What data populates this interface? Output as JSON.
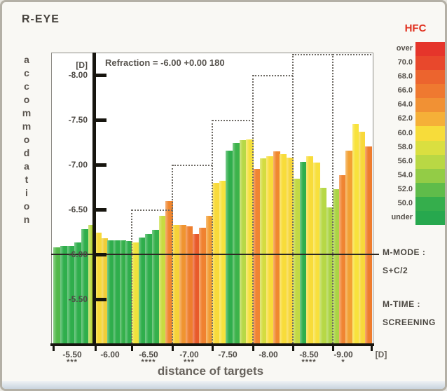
{
  "window": {
    "title": "R-EYE"
  },
  "side_panel": {
    "m_mode_label": "M-MODE :",
    "m_mode_value": "S+C/2",
    "m_time_label": "M-TIME :",
    "m_time_value": "SCREENING"
  },
  "legend": {
    "title": "HFC",
    "bands": [
      {
        "label": "over",
        "color": "#e5352b"
      },
      {
        "label": "70.0",
        "color": "#e8482c"
      },
      {
        "label": "68.0",
        "color": "#ec642e"
      },
      {
        "label": "66.0",
        "color": "#ef7930"
      },
      {
        "label": "64.0",
        "color": "#f19134"
      },
      {
        "label": "62.0",
        "color": "#f5b038"
      },
      {
        "label": "60.0",
        "color": "#f7dc3a"
      },
      {
        "label": "58.0",
        "color": "#dadf40"
      },
      {
        "label": "56.0",
        "color": "#b9d844"
      },
      {
        "label": "54.0",
        "color": "#93cc46"
      },
      {
        "label": "52.0",
        "color": "#5fbc4a"
      },
      {
        "label": "50.0",
        "color": "#35ae4c"
      },
      {
        "label": "under",
        "color": "#27a84e"
      }
    ]
  },
  "chart_data": {
    "type": "bar",
    "title": "R-EYE",
    "annotation": "Refraction = -6.00 +0.00 180",
    "xlabel": "distance of targets",
    "ylabel": "accommodation",
    "x_unit": "[D]",
    "y_unit": "[D]",
    "ylim": [
      -5.0,
      -8.25
    ],
    "refraction_value": -6.0,
    "grid": "off",
    "legend_position": "right",
    "y_ticks": [
      {
        "label": "-8.00",
        "value": -8.0
      },
      {
        "label": "-7.50",
        "value": -7.5
      },
      {
        "label": "-7.00",
        "value": -7.0
      },
      {
        "label": "-6.50",
        "value": -6.5
      },
      {
        "label": "-6.00",
        "value": -6.0
      },
      {
        "label": "-5.50",
        "value": -5.5
      }
    ],
    "stimulus_series": {
      "name": "target staircase",
      "style": "dotted-step",
      "values": [
        -5.5,
        -6.0,
        -6.5,
        -7.0,
        -7.5,
        -8.0,
        -8.5,
        -9.0
      ]
    },
    "groups": [
      {
        "target_label": "-5.50",
        "target_value": -5.5,
        "significance": "***",
        "bars": [
          {
            "value": -6.08,
            "color": "#52b94a"
          },
          {
            "value": -6.09,
            "color": "#2fae4c"
          },
          {
            "value": -6.09,
            "color": "#2fae4c"
          },
          {
            "value": -6.13,
            "color": "#2fae4c"
          },
          {
            "value": -6.28,
            "color": "#2fae4c"
          },
          {
            "value": -6.33,
            "color": "#b7d83e"
          }
        ]
      },
      {
        "target_label": "-6.00",
        "target_value": -6.0,
        "significance": "",
        "bars": [
          {
            "value": -6.24,
            "color": "#f7d93a"
          },
          {
            "value": -6.18,
            "color": "#f0cd38"
          },
          {
            "value": -6.16,
            "color": "#2fae4c"
          },
          {
            "value": -6.16,
            "color": "#2fae4c"
          },
          {
            "value": -6.16,
            "color": "#35b04b"
          },
          {
            "value": -6.15,
            "color": "#2fae4c"
          }
        ]
      },
      {
        "target_label": "-6.50",
        "target_value": -6.5,
        "significance": "****",
        "bars": [
          {
            "value": -6.13,
            "color": "#eee23c"
          },
          {
            "value": -6.19,
            "color": "#2fae4c"
          },
          {
            "value": -6.23,
            "color": "#2fae4c"
          },
          {
            "value": -6.27,
            "color": "#35b04b"
          },
          {
            "value": -6.43,
            "color": "#c8dc40"
          },
          {
            "value": -6.59,
            "color": "#f0862e"
          }
        ]
      },
      {
        "target_label": "-7.00",
        "target_value": -7.0,
        "significance": "***",
        "bars": [
          {
            "value": -6.33,
            "color": "#f6d238"
          },
          {
            "value": -6.33,
            "color": "#f09430"
          },
          {
            "value": -6.31,
            "color": "#ee7e2e"
          },
          {
            "value": -6.23,
            "color": "#e85a2a"
          },
          {
            "value": -6.3,
            "color": "#f08230"
          },
          {
            "value": -6.43,
            "color": "#f29c32"
          }
        ]
      },
      {
        "target_label": "-7.50",
        "target_value": -7.5,
        "significance": "",
        "bars": [
          {
            "value": -6.8,
            "color": "#f8da3a"
          },
          {
            "value": -6.82,
            "color": "#f8e23c"
          },
          {
            "value": -7.16,
            "color": "#2fae4c"
          },
          {
            "value": -7.24,
            "color": "#3cb34b"
          },
          {
            "value": -7.27,
            "color": "#b7d846"
          },
          {
            "value": -7.28,
            "color": "#f4e03c"
          }
        ]
      },
      {
        "target_label": "-8.00",
        "target_value": -8.0,
        "significance": "",
        "bars": [
          {
            "value": -6.95,
            "color": "#f08432"
          },
          {
            "value": -7.07,
            "color": "#d4dc40"
          },
          {
            "value": -7.09,
            "color": "#f8dc3a"
          },
          {
            "value": -7.15,
            "color": "#f0882e"
          },
          {
            "value": -7.12,
            "color": "#f8dc3a"
          },
          {
            "value": -7.08,
            "color": "#f6d63a"
          }
        ]
      },
      {
        "target_label": "-8.50",
        "target_value": -8.5,
        "significance": "****",
        "bars": [
          {
            "value": -6.84,
            "color": "#c2d944"
          },
          {
            "value": -7.03,
            "color": "#2fae4c"
          },
          {
            "value": -7.09,
            "color": "#f8dc3a"
          },
          {
            "value": -7.02,
            "color": "#f8e03c"
          },
          {
            "value": -6.74,
            "color": "#b7d846"
          },
          {
            "value": -6.52,
            "color": "#abd444"
          }
        ]
      },
      {
        "target_label": "-9.00",
        "target_value": -9.0,
        "significance": "*",
        "bars": [
          {
            "value": -6.73,
            "color": "#abd444"
          },
          {
            "value": -6.88,
            "color": "#f08432"
          },
          {
            "value": -7.16,
            "color": "#f2a034"
          },
          {
            "value": -7.45,
            "color": "#f8e23c"
          },
          {
            "value": -7.37,
            "color": "#f8d83a"
          },
          {
            "value": -7.2,
            "color": "#ee7c2e"
          }
        ]
      }
    ]
  }
}
